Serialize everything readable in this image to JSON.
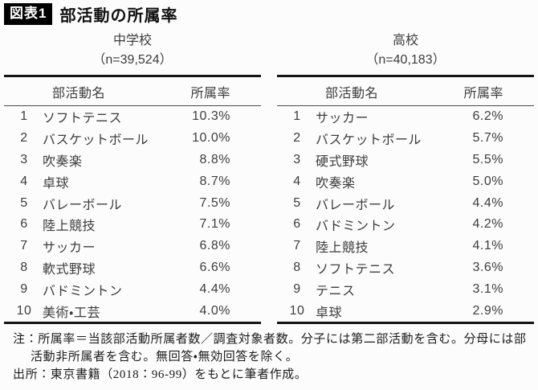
{
  "title": {
    "tag": "図表1",
    "text": "部活動の所属率"
  },
  "tables": [
    {
      "school": "中学校",
      "sample_size": "（n=39,524）",
      "header": {
        "name": "部活動名",
        "rate": "所属率"
      },
      "rows": [
        {
          "rank": "1",
          "name": "ソフトテニス",
          "rate": "10.3%"
        },
        {
          "rank": "2",
          "name": "バスケットボール",
          "rate": "10.0%"
        },
        {
          "rank": "3",
          "name": "吹奏楽",
          "rate": "8.8%"
        },
        {
          "rank": "4",
          "name": "卓球",
          "rate": "8.7%"
        },
        {
          "rank": "5",
          "name": "バレーボール",
          "rate": "7.5%"
        },
        {
          "rank": "6",
          "name": "陸上競技",
          "rate": "7.1%"
        },
        {
          "rank": "7",
          "name": "サッカー",
          "rate": "6.8%"
        },
        {
          "rank": "8",
          "name": "軟式野球",
          "rate": "6.6%"
        },
        {
          "rank": "9",
          "name": "バドミントン",
          "rate": "4.4%"
        },
        {
          "rank": "10",
          "name": "美術・工芸",
          "rate": "4.0%"
        }
      ]
    },
    {
      "school": "高校",
      "sample_size": "（n=40,183）",
      "header": {
        "name": "部活動名",
        "rate": "所属率"
      },
      "rows": [
        {
          "rank": "1",
          "name": "サッカー",
          "rate": "6.2%"
        },
        {
          "rank": "2",
          "name": "バスケットボール",
          "rate": "5.7%"
        },
        {
          "rank": "3",
          "name": "硬式野球",
          "rate": "5.5%"
        },
        {
          "rank": "4",
          "name": "吹奏楽",
          "rate": "5.0%"
        },
        {
          "rank": "5",
          "name": "バレーボール",
          "rate": "4.4%"
        },
        {
          "rank": "6",
          "name": "バドミントン",
          "rate": "4.2%"
        },
        {
          "rank": "7",
          "name": "陸上競技",
          "rate": "4.1%"
        },
        {
          "rank": "8",
          "name": "ソフトテニス",
          "rate": "3.6%"
        },
        {
          "rank": "9",
          "name": "テニス",
          "rate": "3.1%"
        },
        {
          "rank": "10",
          "name": "卓球",
          "rate": "2.9%"
        }
      ]
    }
  ],
  "notes": {
    "note_line1": "注：所属率＝当該部活動所属者数／調査対象者数。分子には第二部活動を含む。分母には部",
    "note_line2": "活動非所属者を含む。無回答・無効回答を除く。",
    "source": "出所：東京書籍（2018：96-99）をもとに筆者作成。"
  },
  "colors": {
    "title_box_bg": "#000000",
    "title_box_text": "#ffffff",
    "table_text": "#3d3d3d",
    "rule_line": "#141414",
    "background": "#fcfcfc"
  },
  "chart_data": [
    {
      "type": "table",
      "title": "中学校（n=39,524）",
      "n": 39524,
      "unit": "%",
      "columns": [
        "部活動名",
        "所属率"
      ],
      "rows": [
        [
          "ソフトテニス",
          10.3
        ],
        [
          "バスケットボール",
          10.0
        ],
        [
          "吹奏楽",
          8.8
        ],
        [
          "卓球",
          8.7
        ],
        [
          "バレーボール",
          7.5
        ],
        [
          "陸上競技",
          7.1
        ],
        [
          "サッカー",
          6.8
        ],
        [
          "軟式野球",
          6.6
        ],
        [
          "バドミントン",
          4.4
        ],
        [
          "美術・工芸",
          4.0
        ]
      ]
    },
    {
      "type": "table",
      "title": "高校（n=40,183）",
      "n": 40183,
      "unit": "%",
      "columns": [
        "部活動名",
        "所属率"
      ],
      "rows": [
        [
          "サッカー",
          6.2
        ],
        [
          "バスケットボール",
          5.7
        ],
        [
          "硬式野球",
          5.5
        ],
        [
          "吹奏楽",
          5.0
        ],
        [
          "バレーボール",
          4.4
        ],
        [
          "バドミントン",
          4.2
        ],
        [
          "陸上競技",
          4.1
        ],
        [
          "ソフトテニス",
          3.6
        ],
        [
          "テニス",
          3.1
        ],
        [
          "卓球",
          2.9
        ]
      ]
    }
  ]
}
